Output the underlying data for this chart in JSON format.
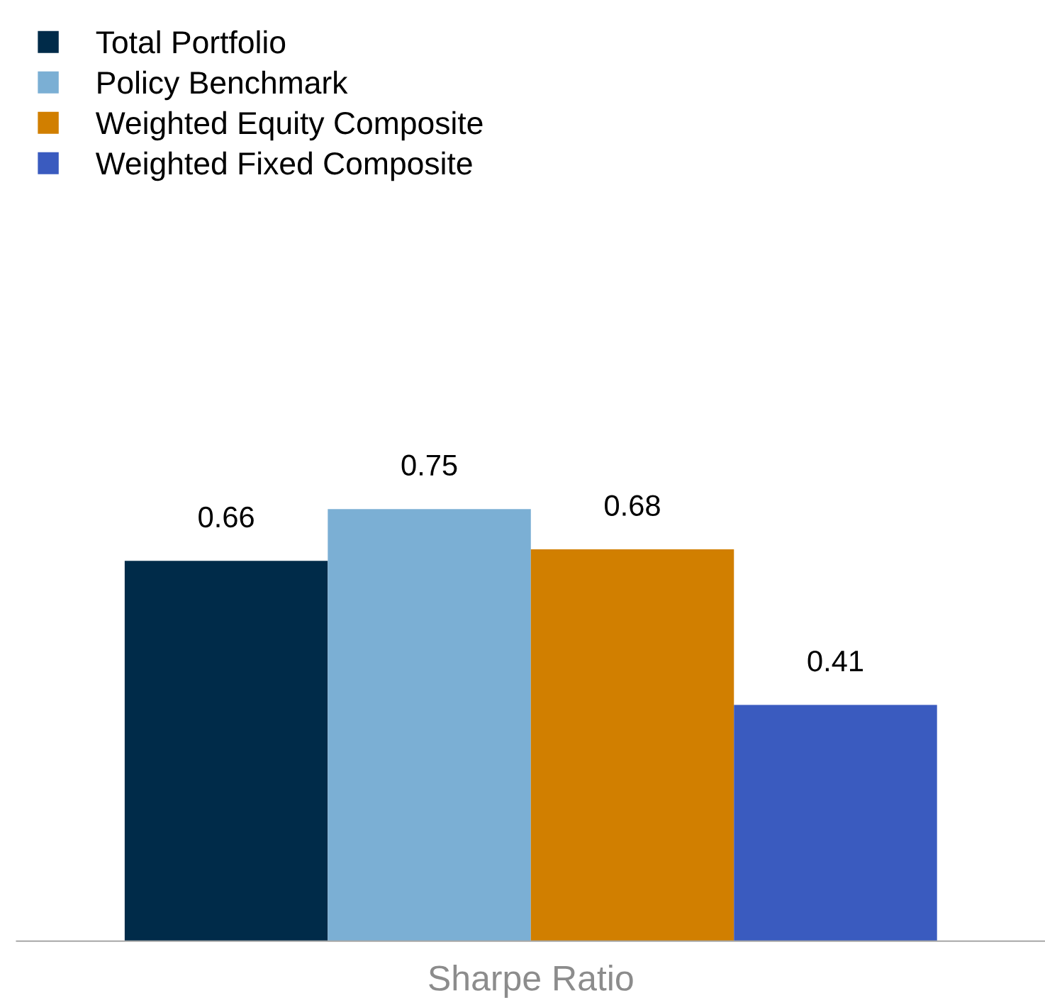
{
  "chart_data": {
    "type": "bar",
    "categories": [
      null
    ],
    "xlabel": "Sharpe Ratio",
    "series": [
      {
        "name": "Total Portfolio",
        "color": "#002b49",
        "values": [
          0.66
        ]
      },
      {
        "name": "Policy Benchmark",
        "color": "#7bafd4",
        "values": [
          0.75
        ]
      },
      {
        "name": "Weighted Equity Composite",
        "color": "#d17f00",
        "values": [
          0.68
        ]
      },
      {
        "name": "Weighted Fixed Composite",
        "color": "#3a5bbf",
        "values": [
          0.41
        ]
      }
    ],
    "data_labels": true,
    "legend": "top left",
    "grid": false
  }
}
